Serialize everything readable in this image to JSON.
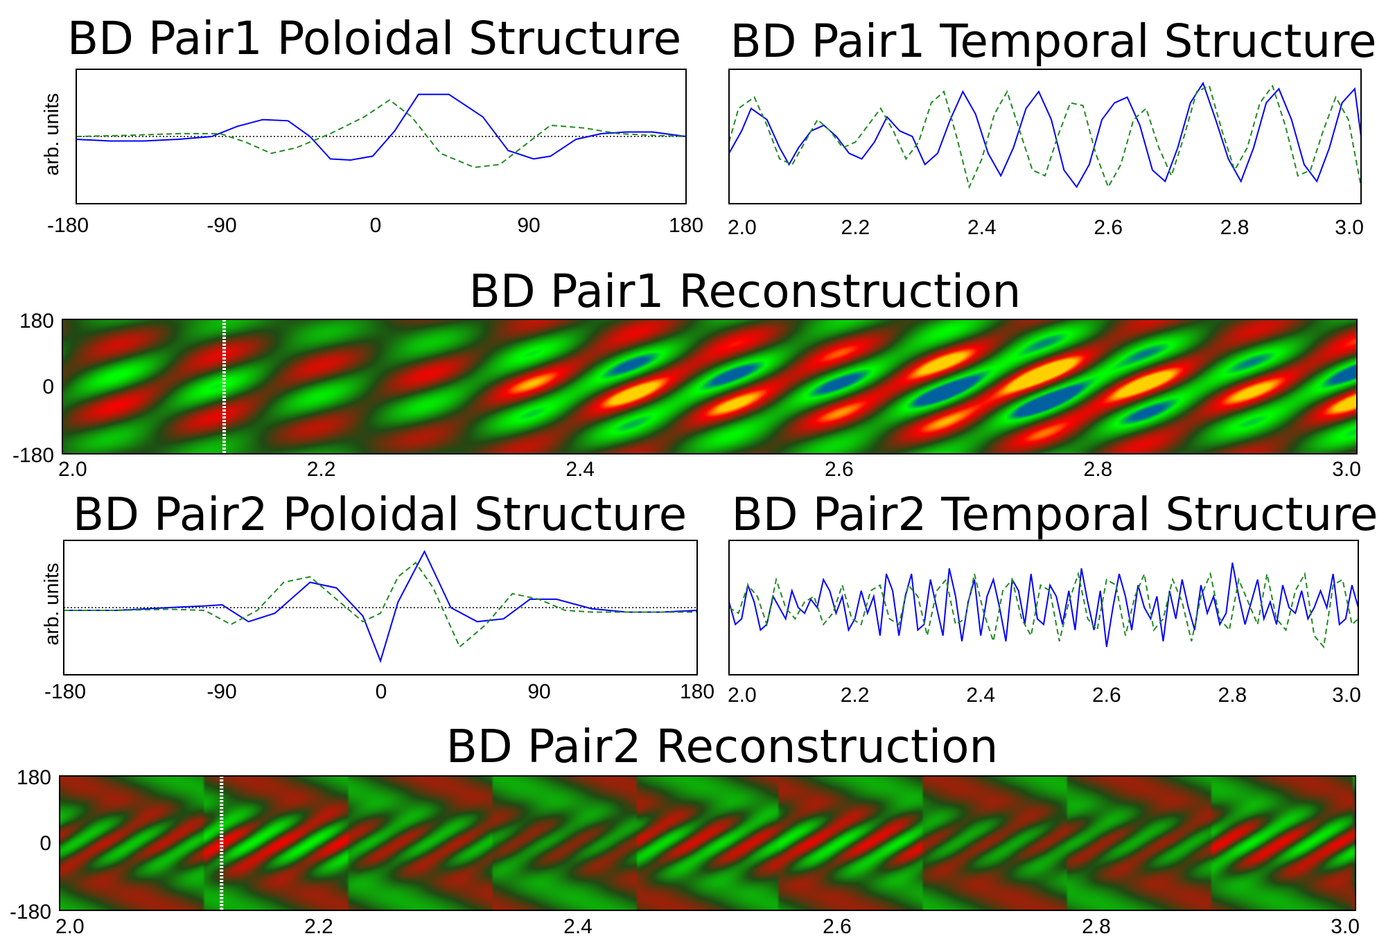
{
  "chart_data": [
    {
      "id": "p1_pol",
      "type": "line",
      "title": "BD Pair1 Poloidal Structure",
      "ylabel": "arb. units",
      "xlim": [
        -180,
        180
      ],
      "ylim": [
        -1.0,
        1.0
      ],
      "xticks": [
        "-180",
        "-90",
        "0",
        "90",
        "180"
      ],
      "xtick_values": [
        -180,
        -90,
        0,
        90,
        180
      ],
      "baseline": 0,
      "series": [
        {
          "style": "solid",
          "color": "#0000ff",
          "x": [
            -180,
            -160,
            -140,
            -120,
            -100,
            -85,
            -70,
            -55,
            -42,
            -30,
            -18,
            -5,
            8,
            22,
            40,
            60,
            75,
            90,
            100,
            115,
            130,
            145,
            160,
            180
          ],
          "y": [
            -0.05,
            -0.08,
            -0.08,
            -0.05,
            0.0,
            0.18,
            0.3,
            0.28,
            0.0,
            -0.4,
            -0.42,
            -0.35,
            0.1,
            0.75,
            0.75,
            0.35,
            -0.25,
            -0.4,
            -0.35,
            -0.05,
            0.05,
            0.08,
            0.08,
            0.0
          ]
        },
        {
          "style": "dashed",
          "color": "#228b22",
          "x": [
            -180,
            -150,
            -120,
            -95,
            -80,
            -65,
            -50,
            -30,
            -10,
            5,
            18,
            35,
            55,
            70,
            85,
            100,
            120,
            140,
            160,
            180
          ],
          "y": [
            0.0,
            0.02,
            0.05,
            0.05,
            -0.1,
            -0.3,
            -0.2,
            0.05,
            0.35,
            0.65,
            0.35,
            -0.3,
            -0.55,
            -0.5,
            -0.15,
            0.2,
            0.15,
            0.05,
            0.02,
            0.0
          ]
        }
      ]
    },
    {
      "id": "p1_tmp",
      "type": "line",
      "title": "BD Pair1 Temporal Structure",
      "xlim": [
        2.0,
        3.0
      ],
      "ylim": [
        -1.0,
        1.0
      ],
      "xticks": [
        "2.0",
        "2.2",
        "2.4",
        "2.6",
        "2.8",
        "3.0"
      ],
      "xtick_values": [
        2.0,
        2.2,
        2.4,
        2.6,
        2.8,
        3.0
      ],
      "series": [
        {
          "style": "solid",
          "color": "#0000ff",
          "x": [
            2.0,
            2.02,
            2.035,
            2.06,
            2.08,
            2.095,
            2.11,
            2.13,
            2.15,
            2.17,
            2.19,
            2.21,
            2.23,
            2.25,
            2.27,
            2.29,
            2.31,
            2.33,
            2.35,
            2.37,
            2.39,
            2.41,
            2.43,
            2.45,
            2.47,
            2.49,
            2.51,
            2.53,
            2.55,
            2.57,
            2.59,
            2.61,
            2.63,
            2.65,
            2.67,
            2.69,
            2.71,
            2.73,
            2.75,
            2.77,
            2.79,
            2.81,
            2.83,
            2.85,
            2.87,
            2.89,
            2.91,
            2.93,
            2.95,
            2.97,
            2.99,
            3.0
          ],
          "y": [
            -0.3,
            0.1,
            0.5,
            0.3,
            -0.2,
            -0.5,
            -0.2,
            0.1,
            0.2,
            0.0,
            -0.3,
            -0.4,
            -0.1,
            0.35,
            0.1,
            0.0,
            -0.5,
            -0.3,
            0.3,
            0.8,
            0.4,
            -0.3,
            -0.7,
            -0.2,
            0.5,
            0.8,
            0.3,
            -0.6,
            -0.9,
            -0.5,
            0.3,
            0.6,
            0.7,
            0.2,
            -0.6,
            -0.8,
            -0.2,
            0.6,
            0.95,
            0.3,
            -0.4,
            -0.8,
            -0.2,
            0.6,
            0.85,
            0.3,
            -0.5,
            -0.8,
            -0.2,
            0.6,
            0.85,
            0.0
          ]
        },
        {
          "style": "dashed",
          "color": "#228b22",
          "x": [
            2.0,
            2.015,
            2.04,
            2.06,
            2.08,
            2.1,
            2.12,
            2.14,
            2.16,
            2.18,
            2.2,
            2.22,
            2.24,
            2.26,
            2.28,
            2.3,
            2.32,
            2.34,
            2.36,
            2.38,
            2.4,
            2.42,
            2.44,
            2.46,
            2.48,
            2.5,
            2.52,
            2.54,
            2.56,
            2.58,
            2.6,
            2.62,
            2.64,
            2.66,
            2.68,
            2.7,
            2.72,
            2.74,
            2.76,
            2.78,
            2.8,
            2.82,
            2.84,
            2.86,
            2.88,
            2.9,
            2.92,
            2.94,
            2.96,
            2.98,
            3.0
          ],
          "y": [
            -0.1,
            0.5,
            0.7,
            0.2,
            -0.4,
            -0.5,
            -0.1,
            0.3,
            0.1,
            -0.2,
            -0.1,
            0.2,
            0.5,
            0.1,
            -0.4,
            -0.1,
            0.6,
            0.8,
            0.0,
            -0.9,
            -0.4,
            0.4,
            0.8,
            0.1,
            -0.6,
            -0.7,
            0.0,
            0.6,
            0.55,
            -0.3,
            -0.9,
            -0.5,
            0.3,
            0.5,
            -0.2,
            -0.7,
            0.0,
            0.8,
            0.9,
            0.1,
            -0.6,
            -0.2,
            0.6,
            0.9,
            0.2,
            -0.7,
            -0.6,
            0.1,
            0.7,
            0.3,
            -0.9
          ]
        }
      ]
    },
    {
      "id": "p1_rec",
      "type": "heatmap",
      "title": "BD Pair1 Reconstruction",
      "xlim": [
        2.0,
        3.0
      ],
      "ylim": [
        -180,
        180
      ],
      "xticks": [
        "2.0",
        "2.2",
        "2.4",
        "2.6",
        "2.8",
        "3.0"
      ],
      "xtick_values": [
        2.0,
        2.2,
        2.4,
        2.6,
        2.8,
        3.0
      ],
      "yticks": [
        "180",
        "0",
        "-180"
      ],
      "ytick_values": [
        180,
        0,
        -180
      ],
      "marker_x": 2.125,
      "colors": {
        "negative": "#ff0000",
        "positive": "#00ff00",
        "zero": "#1f4a14",
        "peak_neg": "#ffd000",
        "peak_pos": "#0060a0"
      }
    },
    {
      "id": "p2_pol",
      "type": "line",
      "title": "BD Pair2 Poloidal Structure",
      "ylabel": "arb. units",
      "xlim": [
        -180,
        180
      ],
      "ylim": [
        -1.0,
        1.0
      ],
      "xticks": [
        "-180",
        "-90",
        "0",
        "90",
        "180"
      ],
      "xtick_values": [
        -180,
        -90,
        0,
        90,
        180
      ],
      "baseline": 0,
      "series": [
        {
          "style": "solid",
          "color": "#0000ff",
          "x": [
            -180,
            -150,
            -120,
            -100,
            -90,
            -75,
            -60,
            -40,
            -25,
            -10,
            0,
            10,
            25,
            40,
            55,
            70,
            85,
            100,
            120,
            140,
            160,
            180
          ],
          "y": [
            -0.05,
            -0.05,
            0.0,
            0.03,
            0.05,
            -0.25,
            -0.1,
            0.45,
            0.35,
            -0.15,
            -0.95,
            0.1,
            1.0,
            0.0,
            -0.25,
            -0.2,
            0.15,
            0.15,
            -0.02,
            -0.08,
            -0.08,
            -0.05
          ]
        },
        {
          "style": "dashed",
          "color": "#228b22",
          "x": [
            -180,
            -150,
            -120,
            -100,
            -85,
            -70,
            -55,
            -40,
            -25,
            -10,
            0,
            10,
            20,
            30,
            45,
            60,
            75,
            90,
            105,
            120,
            140,
            160,
            180
          ],
          "y": [
            -0.05,
            -0.05,
            -0.03,
            -0.05,
            -0.3,
            -0.05,
            0.45,
            0.55,
            0.15,
            -0.25,
            -0.1,
            0.55,
            0.8,
            0.35,
            -0.7,
            -0.3,
            0.25,
            0.15,
            -0.05,
            -0.08,
            -0.08,
            -0.08,
            -0.08
          ]
        }
      ]
    },
    {
      "id": "p2_tmp",
      "type": "line",
      "title": "BD Pair2 Temporal Structure",
      "xlim": [
        2.0,
        3.0
      ],
      "ylim": [
        -1.0,
        1.0
      ],
      "xticks": [
        "2.0",
        "2.2",
        "2.4",
        "2.6",
        "2.8",
        "3.0"
      ],
      "xtick_values": [
        2.0,
        2.2,
        2.4,
        2.6,
        2.8,
        3.0
      ],
      "series": [
        {
          "style": "solid",
          "color": "#0000ff",
          "x": [
            2.0,
            2.01,
            2.02,
            2.03,
            2.04,
            2.05,
            2.06,
            2.07,
            2.08,
            2.09,
            2.1,
            2.11,
            2.12,
            2.13,
            2.14,
            2.15,
            2.16,
            2.17,
            2.18,
            2.19,
            2.2,
            2.21,
            2.22,
            2.23,
            2.24,
            2.25,
            2.26,
            2.27,
            2.28,
            2.29,
            2.3,
            2.31,
            2.32,
            2.33,
            2.34,
            2.35,
            2.36,
            2.37,
            2.38,
            2.39,
            2.4,
            2.41,
            2.42,
            2.43,
            2.44,
            2.45,
            2.46,
            2.47,
            2.48,
            2.49,
            2.5,
            2.51,
            2.52,
            2.53,
            2.54,
            2.55,
            2.56,
            2.57,
            2.58,
            2.59,
            2.6,
            2.61,
            2.62,
            2.63,
            2.64,
            2.65,
            2.66,
            2.67,
            2.68,
            2.69,
            2.7,
            2.71,
            2.72,
            2.73,
            2.74,
            2.75,
            2.76,
            2.77,
            2.78,
            2.79,
            2.8,
            2.81,
            2.82,
            2.83,
            2.84,
            2.85,
            2.86,
            2.87,
            2.88,
            2.89,
            2.9,
            2.91,
            2.92,
            2.93,
            2.94,
            2.95,
            2.96,
            2.97,
            2.98,
            2.99,
            3.0
          ],
          "y": [
            0.1,
            -0.3,
            -0.2,
            0.4,
            0.1,
            -0.4,
            -0.3,
            0.2,
            0.0,
            -0.2,
            0.3,
            0.0,
            -0.1,
            0.15,
            0.0,
            0.5,
            0.3,
            -0.1,
            0.2,
            -0.4,
            -0.2,
            0.3,
            -0.1,
            0.2,
            -0.5,
            0.6,
            0.3,
            -0.5,
            0.2,
            0.6,
            -0.4,
            -0.3,
            0.5,
            0.0,
            -0.5,
            0.7,
            0.2,
            -0.6,
            0.1,
            0.5,
            -0.5,
            0.2,
            0.5,
            0.0,
            -0.6,
            0.5,
            0.3,
            -0.3,
            0.6,
            -0.2,
            -0.3,
            0.4,
            0.2,
            -0.3,
            0.3,
            -0.4,
            0.7,
            0.1,
            -0.4,
            0.3,
            -0.7,
            0.0,
            0.6,
            0.2,
            -0.4,
            0.4,
            0.0,
            -0.2,
            0.2,
            -0.6,
            0.3,
            -0.2,
            0.5,
            0.0,
            -0.4,
            0.4,
            -0.1,
            0.2,
            -0.3,
            -0.1,
            0.8,
            0.2,
            -0.3,
            0.1,
            0.5,
            -0.2,
            0.1,
            -0.3,
            0.4,
            0.0,
            -0.1,
            0.3,
            -0.2,
            0.0,
            0.3,
            0.0,
            0.6,
            -0.3,
            -0.2,
            0.4,
            0.0
          ]
        },
        {
          "style": "dashed",
          "color": "#228b22",
          "x": [
            2.0,
            2.015,
            2.03,
            2.045,
            2.06,
            2.075,
            2.09,
            2.105,
            2.12,
            2.135,
            2.15,
            2.165,
            2.18,
            2.195,
            2.21,
            2.225,
            2.24,
            2.255,
            2.27,
            2.285,
            2.3,
            2.315,
            2.33,
            2.345,
            2.36,
            2.375,
            2.39,
            2.405,
            2.42,
            2.435,
            2.45,
            2.465,
            2.48,
            2.495,
            2.51,
            2.525,
            2.54,
            2.555,
            2.57,
            2.585,
            2.6,
            2.615,
            2.63,
            2.645,
            2.66,
            2.675,
            2.69,
            2.705,
            2.72,
            2.735,
            2.75,
            2.765,
            2.78,
            2.795,
            2.81,
            2.825,
            2.84,
            2.855,
            2.87,
            2.885,
            2.9,
            2.915,
            2.93,
            2.945,
            2.96,
            2.975,
            2.99,
            3.0
          ],
          "y": [
            0.0,
            -0.1,
            0.4,
            0.2,
            -0.3,
            0.5,
            0.0,
            -0.2,
            0.1,
            0.2,
            -0.3,
            -0.1,
            0.4,
            -0.2,
            -0.3,
            0.3,
            0.4,
            -0.2,
            -0.3,
            0.4,
            0.2,
            -0.5,
            0.3,
            0.5,
            -0.3,
            -0.2,
            0.6,
            -0.1,
            -0.6,
            0.3,
            0.5,
            -0.2,
            -0.5,
            0.4,
            0.3,
            -0.6,
            0.1,
            0.6,
            -0.2,
            -0.4,
            0.5,
            0.4,
            -0.5,
            0.2,
            0.6,
            -0.4,
            -0.2,
            0.5,
            0.1,
            -0.6,
            0.2,
            0.6,
            -0.2,
            -0.4,
            0.5,
            0.1,
            -0.3,
            0.6,
            -0.2,
            -0.4,
            0.3,
            0.6,
            -0.5,
            -0.7,
            0.4,
            0.5,
            -0.3,
            -0.2
          ]
        }
      ]
    },
    {
      "id": "p2_rec",
      "type": "heatmap",
      "title": "BD Pair2 Reconstruction",
      "xlim": [
        2.0,
        3.0
      ],
      "ylim": [
        -180,
        180
      ],
      "xticks": [
        "2.0",
        "2.2",
        "2.4",
        "2.6",
        "2.8",
        "3.0"
      ],
      "xtick_values": [
        2.0,
        2.2,
        2.4,
        2.6,
        2.8,
        3.0
      ],
      "yticks": [
        "180",
        "0",
        "-180"
      ],
      "ytick_values": [
        180,
        0,
        -180
      ],
      "marker_x": 2.125,
      "colors": {
        "negative": "#ff0000",
        "positive": "#00ff00",
        "zero": "#1f4a14",
        "peak_neg": "#ffd000",
        "peak_pos": "#0060a0"
      }
    }
  ]
}
